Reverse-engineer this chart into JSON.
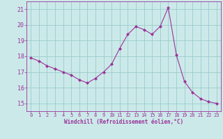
{
  "x": [
    0,
    1,
    2,
    3,
    4,
    5,
    6,
    7,
    8,
    9,
    10,
    11,
    12,
    13,
    14,
    15,
    16,
    17,
    18,
    19,
    20,
    21,
    22,
    23
  ],
  "y": [
    17.9,
    17.7,
    17.4,
    17.2,
    17.0,
    16.8,
    16.5,
    16.3,
    16.6,
    17.0,
    17.5,
    18.5,
    19.4,
    19.9,
    19.7,
    19.4,
    19.9,
    21.1,
    18.1,
    16.4,
    15.7,
    15.3,
    15.1,
    15.0
  ],
  "line_color": "#993399",
  "marker": "D",
  "marker_size": 2.0,
  "bg_color": "#cce9e9",
  "grid_color": "#99cccc",
  "xlabel": "Windchill (Refroidissement éolien,°C)",
  "xlabel_color": "#993399",
  "tick_color": "#993399",
  "ylim": [
    14.5,
    21.5
  ],
  "xlim": [
    -0.5,
    23.5
  ],
  "yticks": [
    15,
    16,
    17,
    18,
    19,
    20,
    21
  ],
  "xticks": [
    0,
    1,
    2,
    3,
    4,
    5,
    6,
    7,
    8,
    9,
    10,
    11,
    12,
    13,
    14,
    15,
    16,
    17,
    18,
    19,
    20,
    21,
    22,
    23
  ]
}
